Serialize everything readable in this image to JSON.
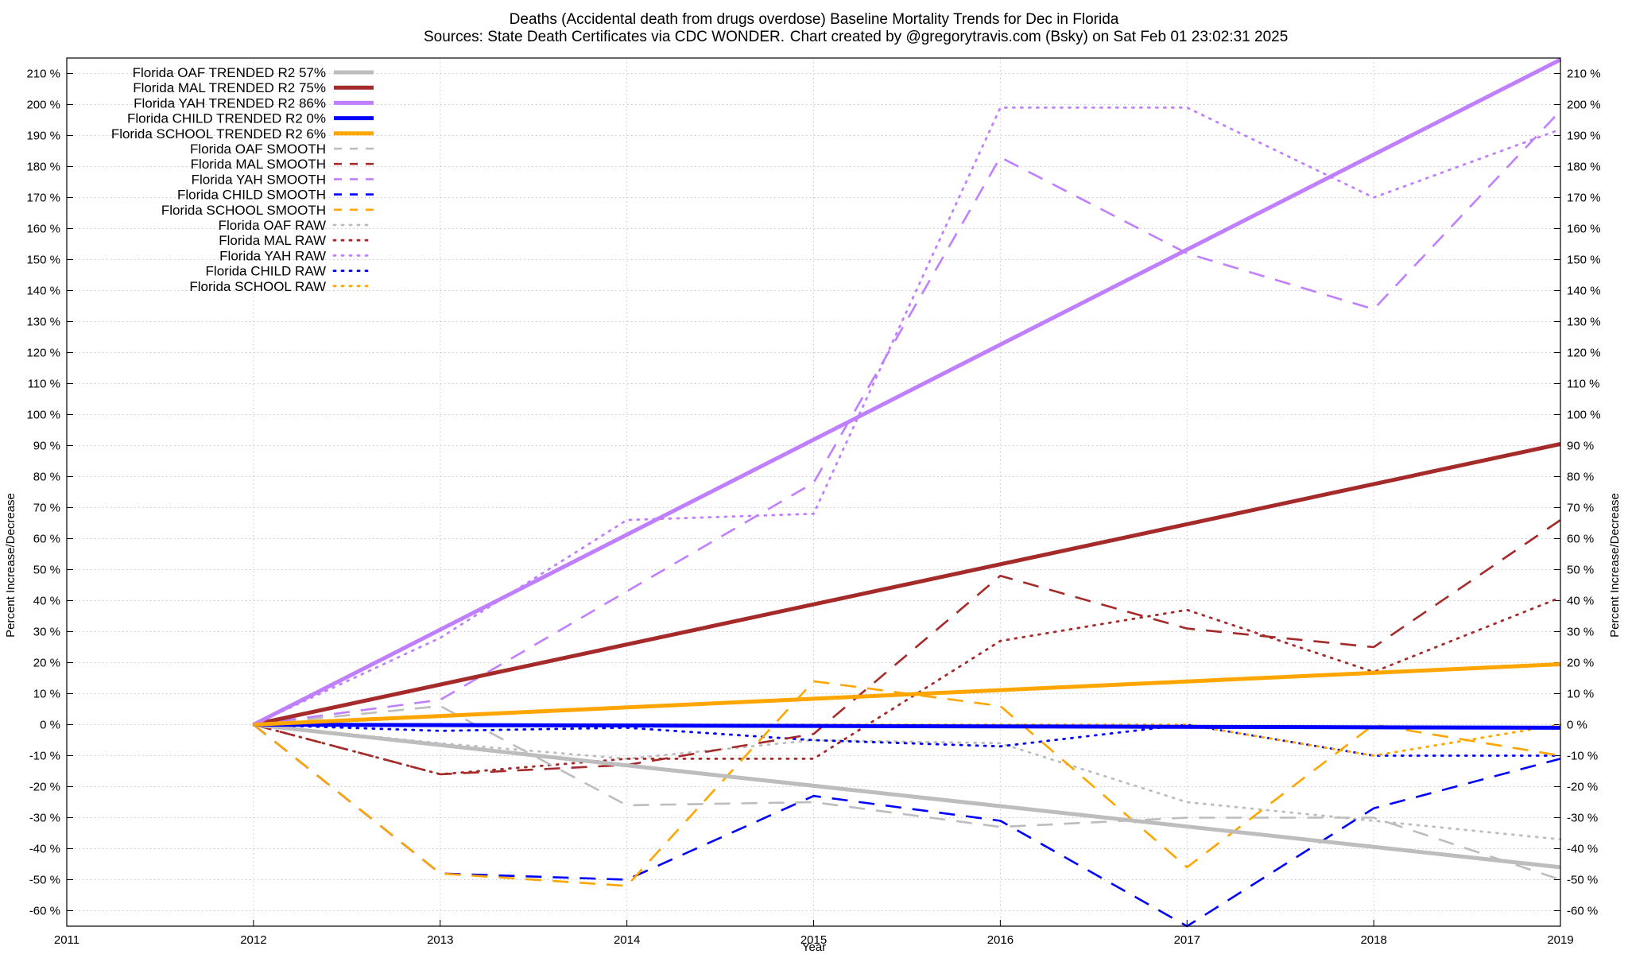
{
  "chart_data": {
    "type": "line",
    "title_line1": "Deaths (Accidental death from drugs overdose)  Baseline Mortality Trends for Dec in Florida",
    "title_line2_left": "Sources: State Death Certificates via CDC WONDER.",
    "title_line2_right": "Chart created by @gregorytravis.com (Bsky) on Sat Feb 01 23:02:31 2025",
    "xlabel": "Year",
    "ylabel_left": "Percent Increase/Decrease",
    "ylabel_right": "Percent Increase/Decrease",
    "xlim": [
      2011,
      2019
    ],
    "ylim": [
      -65,
      215
    ],
    "x_ticks": [
      "2011",
      "2012",
      "2013",
      "2014",
      "2015",
      "2016",
      "2017",
      "2018",
      "2019"
    ],
    "y_ticks": [
      {
        "v": 210,
        "label": "210 %"
      },
      {
        "v": 200,
        "label": "200 %"
      },
      {
        "v": 190,
        "label": "190 %"
      },
      {
        "v": 180,
        "label": "180 %"
      },
      {
        "v": 170,
        "label": "170 %"
      },
      {
        "v": 160,
        "label": "160 %"
      },
      {
        "v": 150,
        "label": "150 %"
      },
      {
        "v": 140,
        "label": "140 %"
      },
      {
        "v": 130,
        "label": "130 %"
      },
      {
        "v": 120,
        "label": "120 %"
      },
      {
        "v": 110,
        "label": "110 %"
      },
      {
        "v": 100,
        "label": "100 %"
      },
      {
        "v": 90,
        "label": "90 %"
      },
      {
        "v": 80,
        "label": "80 %"
      },
      {
        "v": 70,
        "label": "70 %"
      },
      {
        "v": 60,
        "label": "60 %"
      },
      {
        "v": 50,
        "label": "50 %"
      },
      {
        "v": 40,
        "label": "40 %"
      },
      {
        "v": 30,
        "label": "30 %"
      },
      {
        "v": 20,
        "label": "20 %"
      },
      {
        "v": 10,
        "label": "10 %"
      },
      {
        "v": 0,
        "label": "0 %"
      },
      {
        "v": -10,
        "label": "-10 %"
      },
      {
        "v": -20,
        "label": "-20 %"
      },
      {
        "v": -30,
        "label": "-30 %"
      },
      {
        "v": -40,
        "label": "-40 %"
      },
      {
        "v": -50,
        "label": "-50 %"
      },
      {
        "v": -60,
        "label": "-60 %"
      }
    ],
    "grid": true,
    "legend_position": "top-left",
    "series": [
      {
        "name": "Florida OAF TRENDED R2  57%",
        "style": "trend",
        "color": "#bdbdbd",
        "x": [
          2012,
          2019
        ],
        "y": [
          0,
          -46
        ]
      },
      {
        "name": "Florida MAL TRENDED R2  75%",
        "style": "trend",
        "color": "#a52a2a",
        "x": [
          2012,
          2019
        ],
        "y": [
          0,
          90.5
        ]
      },
      {
        "name": "Florida YAH TRENDED R2  86%",
        "style": "trend",
        "color": "#bf7fff",
        "x": [
          2012,
          2019
        ],
        "y": [
          0,
          214.5
        ]
      },
      {
        "name": "Florida CHILD TRENDED R2   0%",
        "style": "trend",
        "color": "#0000ff",
        "x": [
          2012,
          2019
        ],
        "y": [
          0,
          -1
        ]
      },
      {
        "name": "Florida SCHOOL TRENDED R2   6%",
        "style": "trend",
        "color": "#ffa500",
        "x": [
          2012,
          2019
        ],
        "y": [
          0,
          19.5
        ]
      },
      {
        "name": "Florida OAF SMOOTH",
        "style": "smooth",
        "color": "#bdbdbd",
        "x": [
          2012,
          2013,
          2014,
          2015,
          2016,
          2017,
          2018,
          2019
        ],
        "y": [
          0,
          6,
          -26,
          -25,
          -33,
          -30,
          -30,
          -50
        ]
      },
      {
        "name": "Florida MAL SMOOTH",
        "style": "smooth",
        "color": "#a52a2a",
        "x": [
          2012,
          2013,
          2014,
          2015,
          2016,
          2017,
          2018,
          2019
        ],
        "y": [
          0,
          -16,
          -13,
          -3,
          48,
          31,
          25,
          66
        ]
      },
      {
        "name": "Florida YAH SMOOTH",
        "style": "smooth",
        "color": "#bf7fff",
        "x": [
          2012,
          2013,
          2014,
          2015,
          2016,
          2017,
          2018,
          2019
        ],
        "y": [
          0,
          8,
          43,
          78,
          183,
          152,
          134,
          198
        ]
      },
      {
        "name": "Florida CHILD SMOOTH",
        "style": "smooth",
        "color": "#0000ff",
        "x": [
          2012,
          2013,
          2014,
          2015,
          2016,
          2017,
          2018,
          2019
        ],
        "y": [
          0,
          -48,
          -50,
          -23,
          -31,
          -65,
          -27,
          -11
        ]
      },
      {
        "name": "Florida SCHOOL SMOOTH",
        "style": "smooth",
        "color": "#ffa500",
        "x": [
          2012,
          2013,
          2014,
          2015,
          2016,
          2017,
          2018,
          2019
        ],
        "y": [
          0,
          -48,
          -52,
          14,
          6,
          -46,
          0,
          -10
        ]
      },
      {
        "name": "Florida OAF RAW",
        "style": "raw",
        "color": "#bdbdbd",
        "x": [
          2012,
          2013,
          2014,
          2015,
          2016,
          2017,
          2018,
          2019
        ],
        "y": [
          0,
          -6,
          -11,
          -5,
          -6,
          -25,
          -31,
          -37
        ]
      },
      {
        "name": "Florida MAL RAW",
        "style": "raw",
        "color": "#a52a2a",
        "x": [
          2012,
          2013,
          2014,
          2015,
          2016,
          2017,
          2018,
          2019
        ],
        "y": [
          0,
          -16,
          -11,
          -11,
          27,
          37,
          17,
          41
        ]
      },
      {
        "name": "Florida YAH RAW",
        "style": "raw",
        "color": "#bf7fff",
        "x": [
          2012,
          2013,
          2014,
          2015,
          2016,
          2017,
          2018,
          2019
        ],
        "y": [
          0,
          28,
          66,
          68,
          199,
          199,
          170,
          192
        ]
      },
      {
        "name": "Florida CHILD RAW",
        "style": "raw",
        "color": "#0000ff",
        "x": [
          2012,
          2013,
          2014,
          2015,
          2016,
          2017,
          2018,
          2019
        ],
        "y": [
          0,
          -2,
          -1,
          -5,
          -7,
          0,
          -10,
          -10
        ]
      },
      {
        "name": "Florida SCHOOL RAW",
        "style": "raw",
        "color": "#ffa500",
        "x": [
          2012,
          2013,
          2014,
          2015,
          2016,
          2017,
          2018,
          2019
        ],
        "y": [
          0,
          0,
          0,
          0,
          0,
          0,
          -10,
          0
        ]
      }
    ]
  }
}
